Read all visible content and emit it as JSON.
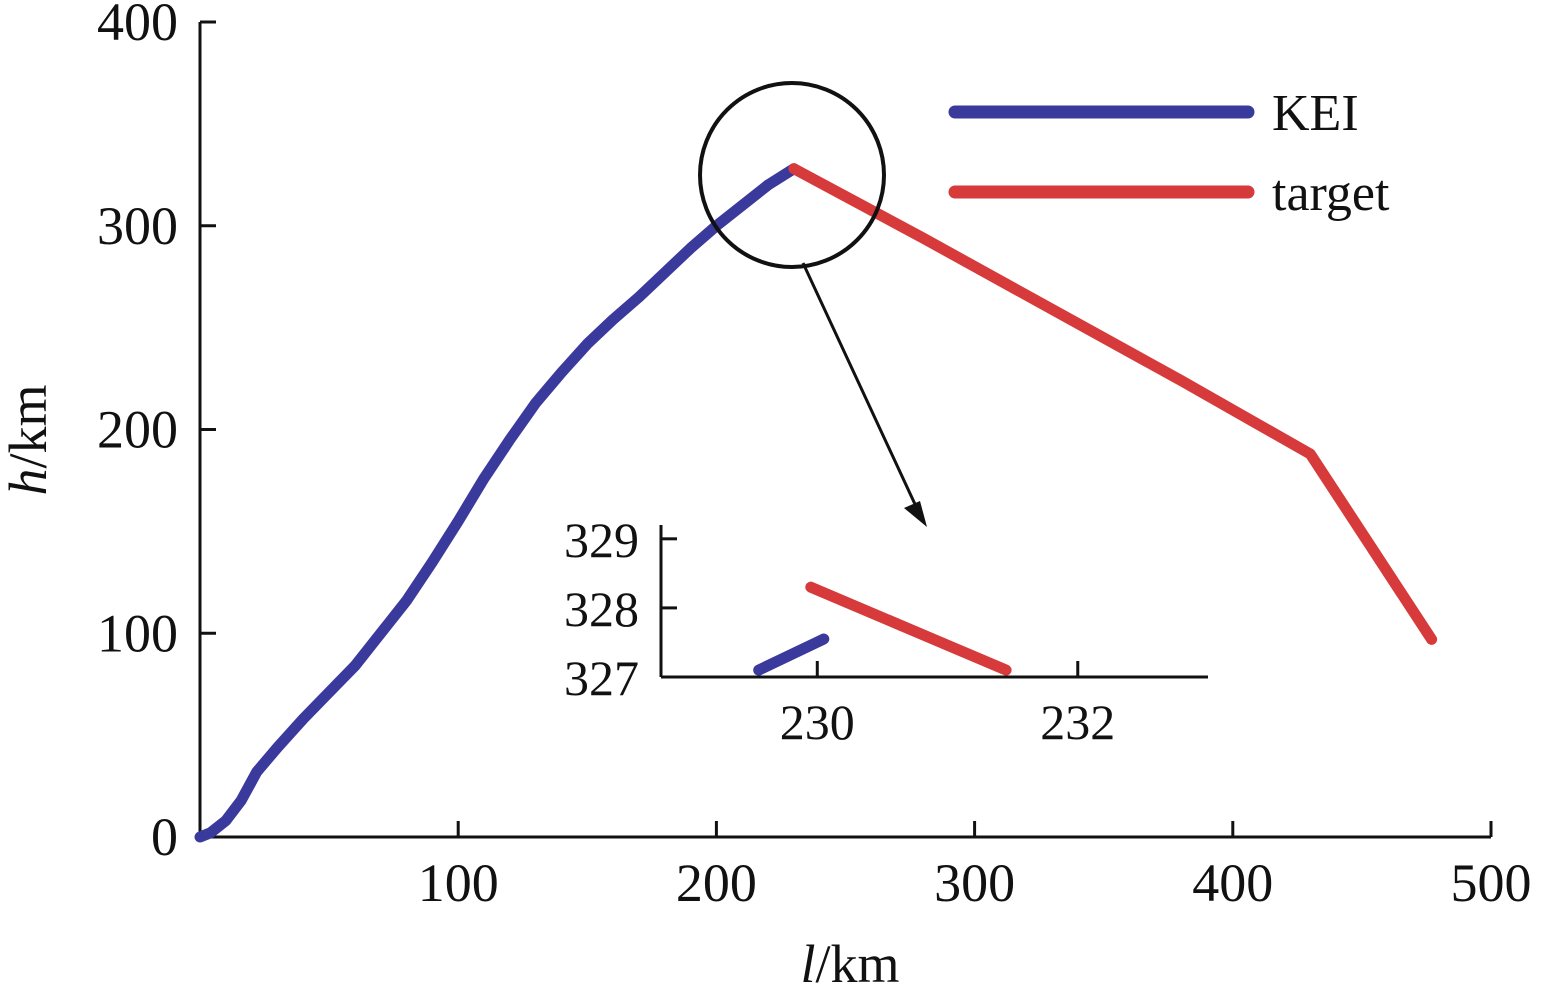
{
  "chart_data": [
    {
      "type": "line",
      "xlabel_var": "l",
      "xlabel_unit": "/km",
      "ylabel_var": "h",
      "ylabel_unit": "/km",
      "xlim": [
        0,
        500
      ],
      "ylim": [
        0,
        400
      ],
      "x_ticks": [
        100,
        200,
        300,
        400,
        500
      ],
      "y_ticks": [
        0,
        100,
        200,
        300,
        400
      ],
      "legend_position": "top-right",
      "series": [
        {
          "name": "KEI",
          "color": "#3a3a9c",
          "x": [
            0,
            4,
            10,
            16,
            22,
            30,
            40,
            50,
            60,
            70,
            80,
            90,
            100,
            110,
            120,
            130,
            140,
            150,
            160,
            170,
            180,
            190,
            200,
            210,
            220,
            230
          ],
          "y": [
            0,
            2,
            8,
            18,
            32,
            44,
            58,
            71,
            84,
            100,
            116,
            135,
            155,
            176,
            195,
            213,
            228,
            242,
            254,
            265,
            277,
            289,
            300,
            310,
            320,
            328
          ]
        },
        {
          "name": "target",
          "color": "#d63a3a",
          "x": [
            230,
            280,
            330,
            380,
            430,
            477
          ],
          "y": [
            328,
            294,
            259,
            224,
            188,
            97
          ]
        }
      ],
      "annotation": "circle-zoom"
    },
    {
      "type": "line",
      "role": "inset",
      "xlim": [
        228.8,
        233
      ],
      "ylim": [
        327,
        329.2
      ],
      "x_ticks": [
        230,
        232
      ],
      "y_ticks": [
        327,
        328,
        329
      ],
      "series": [
        {
          "name": "KEI",
          "color": "#3a3a9c",
          "x": [
            229.55,
            230.05
          ],
          "y": [
            327.1,
            327.55
          ]
        },
        {
          "name": "target",
          "color": "#d63a3a",
          "x": [
            229.95,
            231.45
          ],
          "y": [
            328.3,
            327.1
          ]
        }
      ]
    }
  ]
}
